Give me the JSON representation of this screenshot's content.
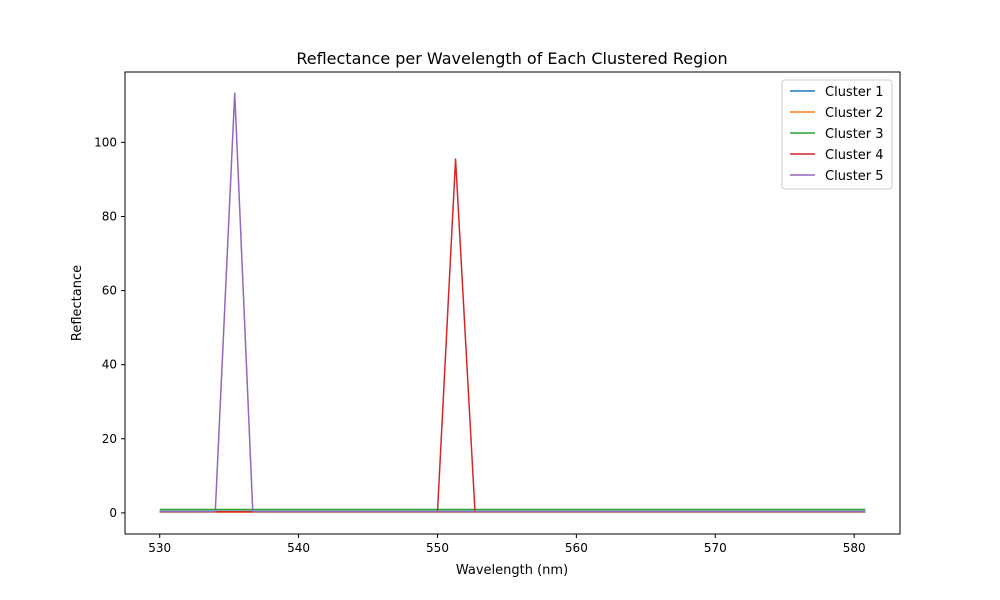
{
  "chart_data": {
    "type": "line",
    "title": "Reflectance per Wavelength of Each Clustered Region",
    "xlabel": "Wavelength (nm)",
    "ylabel": "Reflectance",
    "xlim": [
      527.5,
      583.3
    ],
    "ylim": [
      -5.7,
      119.0
    ],
    "xticks": [
      530,
      540,
      550,
      560,
      570,
      580
    ],
    "yticks": [
      0,
      20,
      40,
      60,
      80,
      100
    ],
    "grid": false,
    "legend_position": "top-right",
    "series": [
      {
        "name": "Cluster 1",
        "color": "#1f77b4",
        "x": [
          530,
          580.8
        ],
        "y": [
          0.4,
          0.4
        ]
      },
      {
        "name": "Cluster 2",
        "color": "#ff7f0e",
        "x": [
          530,
          580.8
        ],
        "y": [
          0.2,
          0.2
        ]
      },
      {
        "name": "Cluster 3",
        "color": "#2ca02c",
        "x": [
          530,
          580.8
        ],
        "y": [
          0.9,
          0.9
        ]
      },
      {
        "name": "Cluster 4",
        "color": "#d62728",
        "x": [
          530,
          534.0,
          535.4,
          536.7,
          550.0,
          551.3,
          552.7,
          580.8
        ],
        "y": [
          0.3,
          0.3,
          0.3,
          0.3,
          0.3,
          95.5,
          0.3,
          0.3
        ]
      },
      {
        "name": "Cluster 5",
        "color": "#9467bd",
        "x": [
          530,
          534.0,
          535.4,
          536.7,
          580.8
        ],
        "y": [
          0.3,
          0.3,
          113.3,
          0.3,
          0.3
        ]
      }
    ]
  }
}
